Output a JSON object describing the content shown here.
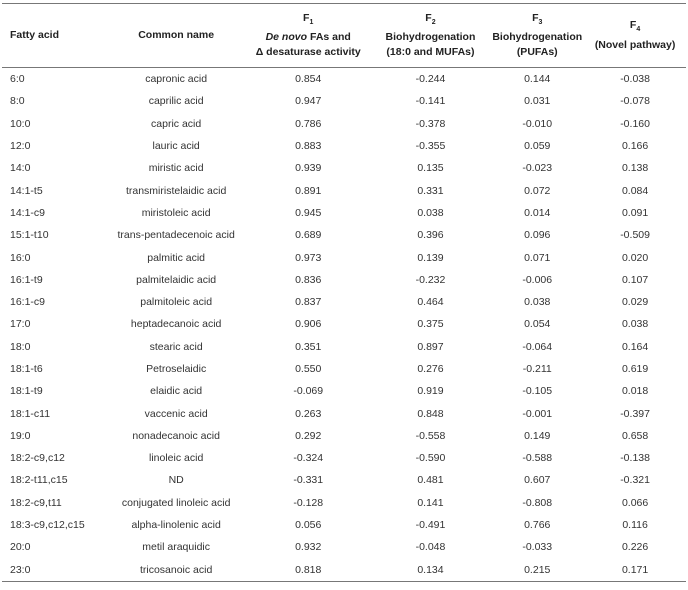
{
  "table": {
    "header": [
      {
        "lines": [
          [
            {
              "text": "Fatty acid"
            }
          ]
        ]
      },
      {
        "lines": [
          [
            {
              "text": "Common name"
            }
          ]
        ]
      },
      {
        "symbol": "F",
        "index": "1",
        "lines": [
          [
            {
              "text": "De novo",
              "italic": true
            },
            {
              "text": "FAs and"
            }
          ],
          [
            {
              "text": "Δ desaturase activity"
            }
          ]
        ]
      },
      {
        "symbol": "F",
        "index": "2",
        "lines": [
          [
            {
              "text": "Biohydrogenation"
            }
          ],
          [
            {
              "text": "(18:0 and MUFAs)"
            }
          ]
        ]
      },
      {
        "symbol": "F",
        "index": "3",
        "lines": [
          [
            {
              "text": "Biohydrogenation"
            }
          ],
          [
            {
              "text": "(PUFAs)"
            }
          ]
        ]
      },
      {
        "symbol": "F",
        "index": "4",
        "lines": [
          [
            {
              "text": "(Novel pathway)"
            }
          ]
        ]
      }
    ],
    "rows": [
      [
        "6:0",
        "capronic acid",
        "0.854",
        "-0.244",
        "0.144",
        "-0.038"
      ],
      [
        "8:0",
        "caprilic acid",
        "0.947",
        "-0.141",
        "0.031",
        "-0.078"
      ],
      [
        "10:0",
        "capric acid",
        "0.786",
        "-0.378",
        "-0.010",
        "-0.160"
      ],
      [
        "12:0",
        "lauric acid",
        "0.883",
        "-0.355",
        "0.059",
        "0.166"
      ],
      [
        "14:0",
        "miristic acid",
        "0.939",
        "0.135",
        "-0.023",
        "0.138"
      ],
      [
        "14:1-t5",
        "transmiristelaidic acid",
        "0.891",
        "0.331",
        "0.072",
        "0.084"
      ],
      [
        "14:1-c9",
        "miristoleic acid",
        "0.945",
        "0.038",
        "0.014",
        "0.091"
      ],
      [
        "15:1-t10",
        "trans-pentadecenoic acid",
        "0.689",
        "0.396",
        "0.096",
        "-0.509"
      ],
      [
        "16:0",
        "palmitic acid",
        "0.973",
        "0.139",
        "0.071",
        "0.020"
      ],
      [
        "16:1-t9",
        "palmitelaidic acid",
        "0.836",
        "-0.232",
        "-0.006",
        "0.107"
      ],
      [
        "16:1-c9",
        "palmitoleic acid",
        "0.837",
        "0.464",
        "0.038",
        "0.029"
      ],
      [
        "17:0",
        "heptadecanoic acid",
        "0.906",
        "0.375",
        "0.054",
        "0.038"
      ],
      [
        "18:0",
        "stearic acid",
        "0.351",
        "0.897",
        "-0.064",
        "0.164"
      ],
      [
        "18:1-t6",
        "Petroselaidic",
        "0.550",
        "0.276",
        "-0.211",
        "0.619"
      ],
      [
        "18:1-t9",
        "elaidic acid",
        "-0.069",
        "0.919",
        "-0.105",
        "0.018"
      ],
      [
        "18:1-c11",
        "vaccenic acid",
        "0.263",
        "0.848",
        "-0.001",
        "-0.397"
      ],
      [
        "19:0",
        "nonadecanoic acid",
        "0.292",
        "-0.558",
        "0.149",
        "0.658"
      ],
      [
        "18:2-c9,c12",
        "linoleic acid",
        "-0.324",
        "-0.590",
        "-0.588",
        "-0.138"
      ],
      [
        "18:2-t11,c15",
        "ND",
        "-0.331",
        "0.481",
        "0.607",
        "-0.321"
      ],
      [
        "18:2-c9,t11",
        "conjugated linoleic acid",
        "-0.128",
        "0.141",
        "-0.808",
        "0.066"
      ],
      [
        "18:3-c9,c12,c15",
        "alpha-linolenic acid",
        "0.056",
        "-0.491",
        "0.766",
        "0.116"
      ],
      [
        "20:0",
        "metil araquidic",
        "0.932",
        "-0.048",
        "-0.033",
        "0.226"
      ],
      [
        "23:0",
        "tricosanoic acid",
        "0.818",
        "0.134",
        "0.215",
        "0.171"
      ]
    ]
  }
}
